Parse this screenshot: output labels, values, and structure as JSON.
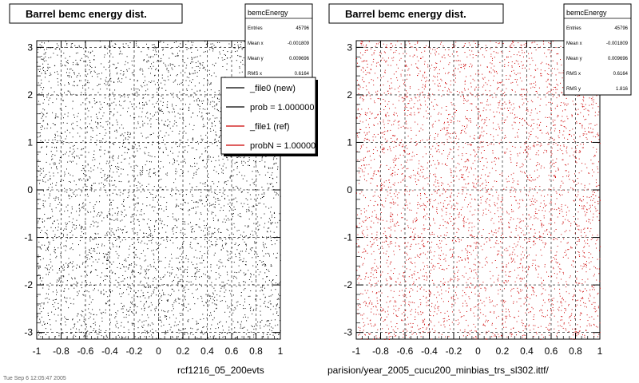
{
  "chart_data": [
    {
      "type": "scatter",
      "title": "Barrel bemc energy dist.",
      "xlim": [
        -1,
        1
      ],
      "ylim": [
        -3.14,
        3.14
      ],
      "xticks": [
        "-1",
        "-0.8",
        "-0.6",
        "-0.4",
        "-0.2",
        "0",
        "0.2",
        "0.4",
        "0.6",
        "0.8",
        "1"
      ],
      "yticks": [
        "3",
        "2",
        "1",
        "0",
        "-1",
        "-2",
        "-3"
      ],
      "grid": true,
      "series": [
        {
          "color": "#000000"
        }
      ],
      "stats": {
        "name": "bemcEnergy",
        "rows": [
          {
            "label": "Entries",
            "value": "45796"
          },
          {
            "label": "Mean x",
            "value": "-0.001809"
          },
          {
            "label": "Mean y",
            "value": "0.009696"
          },
          {
            "label": "RMS x",
            "value": "0.6164"
          }
        ]
      },
      "legend": [
        {
          "label": "_file0 (new)",
          "color": "#000000"
        },
        {
          "label": "prob = 1.000000",
          "color": "#000000"
        },
        {
          "label": "_file1 (ref)",
          "color": "#cc0000"
        },
        {
          "label": "probN = 1.000000",
          "color": "#cc0000"
        }
      ],
      "footer": "rcf1216_05_200evts",
      "corner_text": "Tue Sep  6 12:05:47 2005"
    },
    {
      "type": "scatter",
      "title": "Barrel bemc energy dist.",
      "xlim": [
        -1,
        1
      ],
      "ylim": [
        -3.14,
        3.14
      ],
      "xticks": [
        "-1",
        "-0.8",
        "-0.6",
        "-0.4",
        "-0.2",
        "0",
        "0.2",
        "0.4",
        "0.6",
        "0.8",
        "1"
      ],
      "yticks": [
        "3",
        "2",
        "1",
        "0",
        "-1",
        "-2",
        "-3"
      ],
      "grid": true,
      "series": [
        {
          "color": "#cc0000"
        }
      ],
      "stats": {
        "name": "bemcEnergy",
        "rows": [
          {
            "label": "Entries",
            "value": "45796"
          },
          {
            "label": "Mean x",
            "value": "-0.001809"
          },
          {
            "label": "Mean y",
            "value": "0.009696"
          },
          {
            "label": "RMS x",
            "value": "0.6164"
          },
          {
            "label": "RMS y",
            "value": "1.816"
          }
        ]
      },
      "footer": "parision/year_2005_cucu200_minbias_trs_sl302.ittf/"
    }
  ]
}
